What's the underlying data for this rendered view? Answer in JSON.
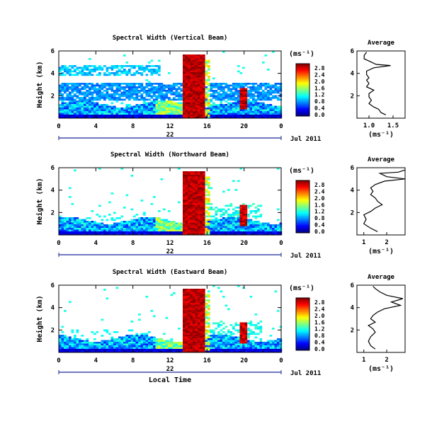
{
  "chart_data": [
    {
      "type": "heatmap",
      "title": "Spectral Width (Vertical Beam)",
      "ylabel": "Height (km)",
      "yticks": [
        "2",
        "4",
        "6"
      ],
      "ylim": [
        0,
        6
      ],
      "xticks": [
        "0",
        "4",
        "8",
        "12",
        "16",
        "20",
        "0"
      ],
      "xlim": [
        0,
        24
      ],
      "date_day": "22",
      "date_label": "Jul 2011",
      "colorbar_unit": "(ms⁻¹)",
      "colorbar_ticks": [
        "0.0",
        "0.4",
        "0.8",
        "1.2",
        "1.6",
        "2.0",
        "2.4",
        "2.8"
      ],
      "colorbar_range": [
        0,
        2.8
      ],
      "average": {
        "title": "Average",
        "xlabel": "(ms⁻¹)",
        "xticks": [
          "1.0",
          "1.5"
        ],
        "xlim": [
          0.75,
          1.75
        ],
        "yticks": [
          "2",
          "4",
          "6"
        ],
        "profile": [
          [
            1.35,
            0.3
          ],
          [
            1.25,
            0.5
          ],
          [
            1.2,
            0.8
          ],
          [
            1.1,
            1.0
          ],
          [
            1.0,
            1.3
          ],
          [
            1.05,
            1.6
          ],
          [
            1.0,
            1.9
          ],
          [
            1.0,
            2.2
          ],
          [
            1.1,
            2.5
          ],
          [
            0.95,
            2.8
          ],
          [
            1.0,
            3.1
          ],
          [
            0.95,
            3.4
          ],
          [
            1.0,
            3.6
          ],
          [
            0.95,
            3.9
          ],
          [
            0.95,
            4.2
          ],
          [
            1.1,
            4.5
          ],
          [
            1.45,
            4.7
          ],
          [
            1.15,
            4.8
          ],
          [
            1.05,
            5.0
          ],
          [
            0.9,
            5.3
          ],
          [
            0.9,
            5.6
          ],
          [
            0.95,
            5.9
          ]
        ]
      }
    },
    {
      "type": "heatmap",
      "title": "Spectral Width (Northward Beam)",
      "ylabel": "Height (km)",
      "yticks": [
        "2",
        "4",
        "6"
      ],
      "ylim": [
        0,
        6
      ],
      "xticks": [
        "0",
        "4",
        "8",
        "12",
        "16",
        "20",
        "0"
      ],
      "xlim": [
        0,
        24
      ],
      "date_day": "22",
      "date_label": "Jul 2011",
      "colorbar_unit": "(ms⁻¹)",
      "colorbar_ticks": [
        "0.0",
        "0.4",
        "0.8",
        "1.2",
        "1.6",
        "2.0",
        "2.4",
        "2.8"
      ],
      "colorbar_range": [
        0,
        2.8
      ],
      "average": {
        "title": "Average",
        "xlabel": "(ms⁻¹)",
        "xticks": [
          "1",
          "2"
        ],
        "xlim": [
          0.7,
          2.8
        ],
        "yticks": [
          "2",
          "4",
          "6"
        ],
        "profile": [
          [
            1.6,
            0.3
          ],
          [
            1.3,
            0.6
          ],
          [
            1.0,
            1.0
          ],
          [
            1.1,
            1.4
          ],
          [
            1.0,
            1.8
          ],
          [
            1.3,
            2.1
          ],
          [
            1.5,
            2.4
          ],
          [
            1.8,
            2.7
          ],
          [
            1.6,
            3.0
          ],
          [
            1.5,
            3.3
          ],
          [
            1.3,
            3.6
          ],
          [
            1.4,
            3.9
          ],
          [
            1.3,
            4.2
          ],
          [
            1.5,
            4.5
          ],
          [
            1.9,
            4.8
          ],
          [
            2.8,
            5.0
          ],
          [
            2.0,
            5.2
          ],
          [
            1.7,
            5.5
          ],
          [
            2.5,
            5.6
          ],
          [
            2.8,
            5.8
          ]
        ]
      }
    },
    {
      "type": "heatmap",
      "title": "Spectral Width (Eastward Beam)",
      "ylabel": "Height (km)",
      "yticks": [
        "2",
        "4",
        "6"
      ],
      "ylim": [
        0,
        6
      ],
      "xticks": [
        "0",
        "4",
        "8",
        "12",
        "16",
        "20",
        "0"
      ],
      "xlim": [
        0,
        24
      ],
      "date_day": "22",
      "date_label": "Jul 2011",
      "xlabel": "Local Time",
      "colorbar_unit": "(ms⁻¹)",
      "colorbar_ticks": [
        "0.0",
        "0.4",
        "0.8",
        "1.2",
        "1.6",
        "2.0",
        "2.4",
        "2.8"
      ],
      "colorbar_range": [
        0,
        2.8
      ],
      "average": {
        "title": "Average",
        "xlabel": "(ms⁻¹)",
        "xticks": [
          "1",
          "2"
        ],
        "xlim": [
          0.7,
          2.8
        ],
        "yticks": [
          "2",
          "4",
          "6"
        ],
        "profile": [
          [
            1.5,
            0.3
          ],
          [
            1.3,
            0.6
          ],
          [
            1.2,
            1.0
          ],
          [
            1.3,
            1.4
          ],
          [
            1.5,
            1.8
          ],
          [
            1.4,
            2.1
          ],
          [
            1.2,
            2.4
          ],
          [
            1.5,
            2.7
          ],
          [
            1.3,
            3.0
          ],
          [
            1.4,
            3.3
          ],
          [
            1.6,
            3.6
          ],
          [
            1.9,
            3.9
          ],
          [
            2.6,
            4.2
          ],
          [
            2.2,
            4.5
          ],
          [
            2.7,
            4.8
          ],
          [
            2.0,
            5.1
          ],
          [
            1.7,
            5.4
          ],
          [
            1.5,
            5.7
          ],
          [
            1.4,
            5.9
          ]
        ]
      }
    }
  ]
}
